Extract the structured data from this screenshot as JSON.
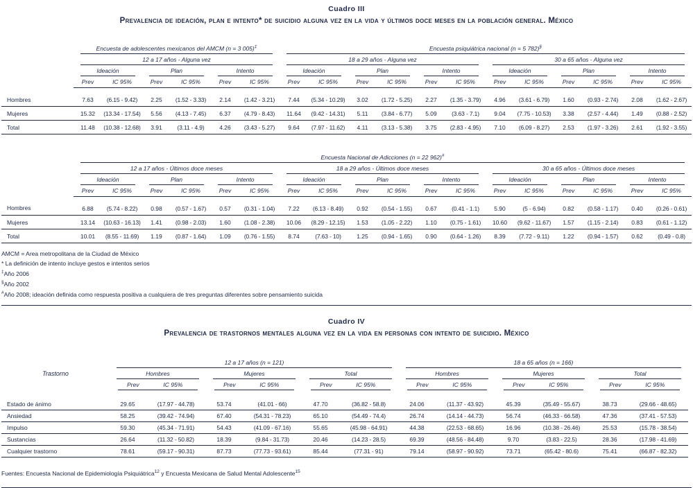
{
  "col_headers": [
    "Prev",
    "IC 95%"
  ],
  "cuadro3": {
    "heading": "Cuadro III",
    "title": "Prevalencia de ideación, plan e intento* de suicidio alguna vez en la vida y últimos doce meses en la población general. México",
    "top": {
      "surveys": [
        {
          "text": "Encuesta de adolescentes mexicanos del AMCM (n = 3 005)",
          "sup": "‡",
          "pairs": 3
        },
        {
          "text": "Encuesta psiquiátrica nacional (n = 5 782)",
          "sup": "§",
          "pairs": 6
        }
      ],
      "ages": [
        {
          "text": "12 a 17 años - Alguna vez",
          "pairs": 3
        },
        {
          "text": "18 a 29 años - Alguna vez",
          "pairs": 3
        },
        {
          "text": "30 a 65 años - Alguna vez",
          "pairs": 3
        }
      ],
      "measures": [
        "Ideación",
        "Plan",
        "Intento",
        "Ideación",
        "Plan",
        "Intento",
        "Ideación",
        "Plan",
        "Intento"
      ],
      "rows": [
        {
          "label": "Hombres",
          "values": [
            "7.63",
            "(6.15 - 9.42)",
            "2.25",
            "(1.52 - 3.33)",
            "2.14",
            "(1.42 - 3.21)",
            "7.44",
            "(5.34 - 10.29)",
            "3.02",
            "(1.72 - 5.25)",
            "2.27",
            "(1.35 - 3.79)",
            "4.96",
            "(3.61 - 6.79)",
            "1.60",
            "(0.93 - 2.74)",
            "2.08",
            "(1.62 - 2.67)"
          ]
        },
        {
          "label": "Mujeres",
          "values": [
            "15.32",
            "(13.34 - 17.54)",
            "5.56",
            "(4.13 - 7.45)",
            "6.37",
            "(4.79 - 8.43)",
            "11.64",
            "(9.42 - 14.31)",
            "5.11",
            "(3.84 - 6.77)",
            "5.09",
            "(3.63 - 7.1)",
            "9.04",
            "(7.75 - 10.53)",
            "3.38",
            "(2.57 - 4.44)",
            "1.49",
            "(0.88 - 2.52)"
          ]
        },
        {
          "label": "Total",
          "values": [
            "11.48",
            "(10.38 - 12.68)",
            "3.91",
            "(3.11 - 4.9)",
            "4.26",
            "(3.43 - 5.27)",
            "9.64",
            "(7.97 - 11.62)",
            "4.11",
            "(3.13 - 5.38)",
            "3.75",
            "(2.83 - 4.95)",
            "7.10",
            "(6.09 - 8.27)",
            "2.53",
            "(1.97 - 3.26)",
            "2.61",
            "(1.92 - 3.55)"
          ]
        }
      ]
    },
    "bottom": {
      "surveys": [
        {
          "text": "Encuesta Nacional de Adicciones (n = 22 962)",
          "sup": "#",
          "pairs": 9
        }
      ],
      "ages": [
        {
          "text": "12 a 17 años - Últimos doce meses",
          "pairs": 3
        },
        {
          "text": "18 a 29 años - Últimos doce meses",
          "pairs": 3
        },
        {
          "text": "30 a 65 años - Últimos doce meses",
          "pairs": 3
        }
      ],
      "measures": [
        "Ideación",
        "Plan",
        "Intento",
        "Ideación",
        "Plan",
        "Intento",
        "Ideación",
        "Plan",
        "Intento"
      ],
      "rows": [
        {
          "label": "Hombres",
          "values": [
            "6.88",
            "(5.74 - 8.22)",
            "0.98",
            "(0.57 - 1.67)",
            "0.57",
            "(0.31 - 1.04)",
            "7.22",
            "(6.13 - 8.49)",
            "0.92",
            "(0.54 - 1.55)",
            "0.67",
            "(0.41 - 1.1)",
            "5.90",
            "(5 - 6.94)",
            "0.82",
            "(0.58 - 1.17)",
            "0.40",
            "(0.26 - 0.61)"
          ]
        },
        {
          "label": "Mujeres",
          "values": [
            "13.14",
            "(10.63 - 16.13)",
            "1.41",
            "(0.98 - 2.03)",
            "1.60",
            "(1.08 - 2.38)",
            "10.06",
            "(8.29 - 12.15)",
            "1.53",
            "(1.05 - 2.22)",
            "1.10",
            "(0.75 - 1.61)",
            "10.60",
            "(9.62 - 11.67)",
            "1.57",
            "(1.15 - 2.14)",
            "0.83",
            "(0.61 - 1.12)"
          ]
        },
        {
          "label": "Total",
          "values": [
            "10.01",
            "(8.55 - 11.69)",
            "1.19",
            "(0.87 - 1.64)",
            "1.09",
            "(0.76 - 1.55)",
            "8.74",
            "(7.63 - 10)",
            "1.25",
            "(0.94 - 1.65)",
            "0.90",
            "(0.64 - 1.26)",
            "8.39",
            "(7.72 - 9.11)",
            "1.22",
            "(0.94 - 1.57)",
            "0.62",
            "(0.49 - 0.8)"
          ]
        }
      ]
    },
    "footnotes": [
      {
        "sup": "",
        "text": "AMCM = Area metropolitana de la Ciudad de México"
      },
      {
        "sup": "",
        "text": "* La definición de intento incluye gestos e intentos serios"
      },
      {
        "sup": "‡",
        "text": "Año 2006"
      },
      {
        "sup": "§",
        "text": "Año 2002"
      },
      {
        "sup": "#",
        "text": "Año 2008; ideación definida como respuesta positiva a cualquiera de tres preguntas diferentes sobre pensamiento suicida"
      }
    ]
  },
  "cuadro4": {
    "heading": "Cuadro IV",
    "title": "Prevalencia de trastornos mentales alguna vez en la vida en personas con intento de suicidio. México",
    "row_header": "Trastorno",
    "ages": [
      {
        "text": "12 a 17 años (n = 121)",
        "pairs": 3
      },
      {
        "text": "18 a 65 años (n = 166)",
        "pairs": 3
      }
    ],
    "sexes": [
      {
        "text": "Hombres"
      },
      {
        "text": "Mujeres"
      },
      {
        "text": "Total"
      },
      {
        "text": "Hombres"
      },
      {
        "text": "Mujeres"
      },
      {
        "text": "Total"
      }
    ],
    "rows": [
      {
        "label": "Estado de ánimo",
        "values": [
          "29.65",
          "(17.97 - 44.78)",
          "53.74",
          "(41.01 - 66)",
          "47.70",
          "(36.82 - 58.8)",
          "24.06",
          "(11.37 - 43.92)",
          "45.39",
          "(35.49 - 55.67)",
          "38.73",
          "(29.66 - 48.65)"
        ]
      },
      {
        "label": "Ansiedad",
        "values": [
          "58.25",
          "(39.42 - 74.94)",
          "67.40",
          "(54.31 - 78.23)",
          "65.10",
          "(54.49 - 74.4)",
          "26.74",
          "(14.14 - 44.73)",
          "56.74",
          "(46.33 - 66.58)",
          "47.36",
          "(37.41 - 57.53)"
        ]
      },
      {
        "label": "Impulso",
        "values": [
          "59.30",
          "(45.34 - 71.91)",
          "54.43",
          "(41.09 - 67.16)",
          "55.65",
          "(45.98 - 64.91)",
          "44.38",
          "(22.53 - 68.65)",
          "16.96",
          "(10.38 - 26.46)",
          "25.53",
          "(15.78 - 38.54)"
        ]
      },
      {
        "label": "Sustancias",
        "values": [
          "26.64",
          "(11.32 - 50.82)",
          "18.39",
          "(9.84 - 31.73)",
          "20.46",
          "(14.23 - 28.5)",
          "69.39",
          "(48.56 - 84.48)",
          "9.70",
          "(3.83 - 22.5)",
          "28.36",
          "(17.98 - 41.69)"
        ]
      },
      {
        "label": "Cualquier trastorno",
        "values": [
          "78.61",
          "(59.17 - 90.31)",
          "87.73",
          "(77.73 - 93.61)",
          "85.44",
          "(77.31 - 91)",
          "79.14",
          "(58.97 - 90.92)",
          "73.71",
          "(65.42 - 80.6)",
          "75.41",
          "(66.87 - 82.32)"
        ]
      }
    ],
    "source": {
      "part1": "Fuentes: Encuesta Nacional de Epidemiología Psiquiátrica",
      "sup1": "12",
      "part2": " y Encuesta Mexicana de Salud Mental Adolescente",
      "sup2": "15"
    }
  }
}
